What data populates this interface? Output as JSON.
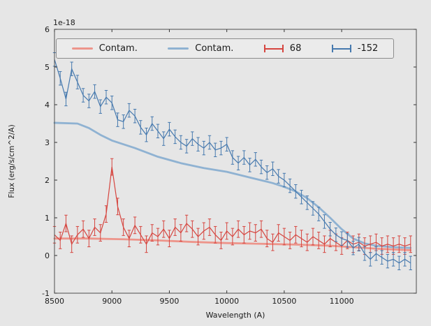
{
  "figure": {
    "bg": "#e6e6e6",
    "plot_bg": "#e6e6e6",
    "frame_color": "#4d4d4d",
    "offset_label": "1e-18",
    "xlabel": "Wavelength (A)",
    "ylabel": "Flux (erg/s/cm^2/A)"
  },
  "legend": {
    "items": [
      {
        "label": "Contam.",
        "type": "line",
        "color": "#ed958b"
      },
      {
        "label": "Contam.",
        "type": "line",
        "color": "#8fb2d2"
      },
      {
        "label": "68",
        "type": "errorbar",
        "color": "#d6453f"
      },
      {
        "label": "-152",
        "type": "errorbar",
        "color": "#4679ae"
      }
    ]
  },
  "chart_data": {
    "type": "line",
    "title": "",
    "xlabel": "Wavelength (A)",
    "ylabel": "Flux (erg/s/cm^2/A)",
    "y_offset_scale": "1e-18",
    "xlim": [
      8500,
      11650
    ],
    "ylim": [
      -1,
      6
    ],
    "xticks": [
      8500,
      9000,
      9500,
      10000,
      10500,
      11000
    ],
    "yticks": [
      -1,
      0,
      1,
      2,
      3,
      4,
      5,
      6
    ],
    "grid": false,
    "legend_position": "upper center, horizontal",
    "series": [
      {
        "key": "contam-red",
        "name": "Contam.",
        "style": "line",
        "color": "#ed958b",
        "linewidth": 2.8,
        "x": [
          8500,
          8800,
          9100,
          9400,
          9700,
          10000,
          10300,
          10600,
          10900,
          11100,
          11300,
          11600
        ],
        "y": [
          0.45,
          0.45,
          0.43,
          0.4,
          0.36,
          0.33,
          0.31,
          0.29,
          0.26,
          0.22,
          0.18,
          0.14
        ]
      },
      {
        "key": "contam-blue",
        "name": "Contam.",
        "style": "line",
        "color": "#8fb2d2",
        "linewidth": 2.8,
        "x": [
          8500,
          8700,
          8800,
          8900,
          9000,
          9100,
          9200,
          9400,
          9600,
          9800,
          10000,
          10200,
          10400,
          10500,
          10600,
          10700,
          10800,
          10900,
          11000,
          11100,
          11200,
          11300,
          11450,
          11600
        ],
        "y": [
          3.52,
          3.5,
          3.38,
          3.2,
          3.05,
          2.95,
          2.85,
          2.62,
          2.45,
          2.32,
          2.22,
          2.07,
          1.92,
          1.82,
          1.7,
          1.52,
          1.28,
          1.0,
          0.7,
          0.45,
          0.32,
          0.26,
          0.22,
          0.2
        ]
      },
      {
        "key": "beam-68",
        "name": "68",
        "style": "errorbar",
        "color": "#d6453f",
        "linewidth": 1.2,
        "yerr": 0.22,
        "x": [
          8500,
          8550,
          8600,
          8650,
          8700,
          8750,
          8800,
          8850,
          8900,
          8950,
          9000,
          9050,
          9100,
          9150,
          9200,
          9250,
          9300,
          9350,
          9400,
          9450,
          9500,
          9550,
          9600,
          9650,
          9700,
          9750,
          9800,
          9850,
          9900,
          9950,
          10000,
          10050,
          10100,
          10150,
          10200,
          10250,
          10300,
          10350,
          10400,
          10450,
          10500,
          10550,
          10600,
          10650,
          10700,
          10750,
          10800,
          10850,
          10900,
          10950,
          11000,
          11050,
          11100,
          11150,
          11200,
          11250,
          11300,
          11350,
          11400,
          11450,
          11500,
          11550,
          11600
        ],
        "y": [
          0.55,
          0.4,
          0.85,
          0.3,
          0.55,
          0.7,
          0.45,
          0.75,
          0.6,
          1.1,
          2.35,
          1.3,
          0.75,
          0.45,
          0.8,
          0.55,
          0.3,
          0.6,
          0.5,
          0.7,
          0.45,
          0.75,
          0.6,
          0.85,
          0.7,
          0.5,
          0.65,
          0.75,
          0.55,
          0.4,
          0.65,
          0.5,
          0.7,
          0.55,
          0.65,
          0.6,
          0.7,
          0.45,
          0.35,
          0.6,
          0.5,
          0.4,
          0.55,
          0.45,
          0.35,
          0.5,
          0.4,
          0.3,
          0.45,
          0.35,
          0.25,
          0.4,
          0.3,
          0.35,
          0.25,
          0.3,
          0.35,
          0.25,
          0.3,
          0.25,
          0.3,
          0.25,
          0.3
        ]
      },
      {
        "key": "beam-152",
        "name": "-152",
        "style": "errorbar",
        "color": "#4679ae",
        "linewidth": 1.2,
        "yerr": 0.18,
        "x": [
          8500,
          8550,
          8600,
          8650,
          8700,
          8750,
          8800,
          8850,
          8900,
          8950,
          9000,
          9050,
          9100,
          9150,
          9200,
          9250,
          9300,
          9350,
          9400,
          9450,
          9500,
          9550,
          9600,
          9650,
          9700,
          9750,
          9800,
          9850,
          9900,
          9950,
          10000,
          10050,
          10100,
          10150,
          10200,
          10250,
          10300,
          10350,
          10400,
          10450,
          10500,
          10550,
          10600,
          10650,
          10700,
          10750,
          10800,
          10850,
          10900,
          10950,
          11000,
          11050,
          11100,
          11150,
          11200,
          11250,
          11300,
          11350,
          11400,
          11450,
          11500,
          11550,
          11600
        ],
        "y": [
          5.2,
          4.7,
          4.15,
          4.95,
          4.6,
          4.25,
          4.1,
          4.35,
          3.95,
          4.2,
          4.05,
          3.6,
          3.55,
          3.85,
          3.7,
          3.4,
          3.2,
          3.5,
          3.3,
          3.1,
          3.35,
          3.15,
          3.0,
          2.9,
          3.1,
          2.95,
          2.85,
          3.0,
          2.8,
          2.85,
          2.95,
          2.6,
          2.45,
          2.6,
          2.4,
          2.55,
          2.35,
          2.2,
          2.3,
          2.1,
          2.0,
          1.85,
          1.7,
          1.55,
          1.4,
          1.25,
          1.1,
          0.9,
          0.7,
          0.55,
          0.45,
          0.4,
          0.2,
          0.3,
          0.05,
          -0.1,
          0.05,
          -0.05,
          -0.15,
          -0.1,
          -0.2,
          -0.1,
          -0.2
        ]
      }
    ]
  }
}
